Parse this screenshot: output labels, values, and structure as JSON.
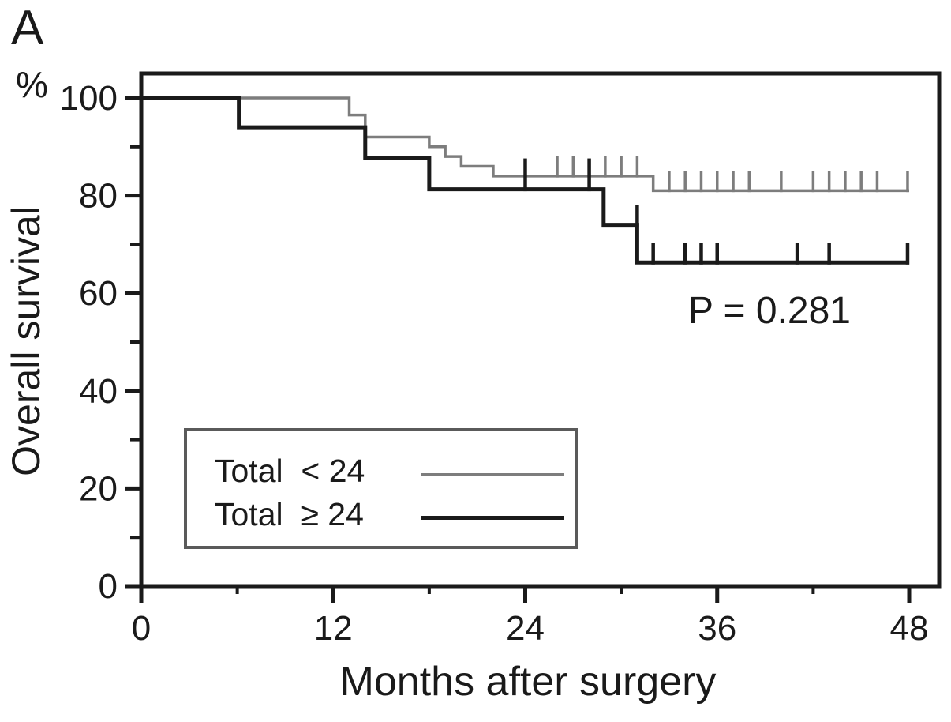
{
  "figure": {
    "panel_label": "A",
    "y_unit": "%",
    "p_value_text": "P = 0.281"
  },
  "chart_data": {
    "type": "line",
    "variant": "kaplan-meier-step-curve",
    "panel_label": "A",
    "xlabel": "Months after surgery",
    "ylabel": "Overall survival",
    "y_unit": "%",
    "xlim": [
      0,
      48
    ],
    "ylim": [
      0,
      100
    ],
    "x_major_ticks": [
      0,
      12,
      24,
      36,
      48
    ],
    "x_minor_ticks": [
      6,
      18,
      30,
      42
    ],
    "y_major_ticks": [
      100,
      80,
      60,
      40,
      20,
      0
    ],
    "y_minor_ticks": [
      90,
      70,
      50,
      30,
      10
    ],
    "grid": false,
    "legend_position": "lower-left",
    "annotation": "P = 0.281",
    "colors": {
      "axis": "#1a1a1a",
      "text": "#1a1a1a",
      "legend_border": "#5a5a5a"
    },
    "series": [
      {
        "name": "Total < 24",
        "legend_label": "Total  < 24",
        "color": "#7d7d7d",
        "line_width": 3.5,
        "points": [
          [
            0,
            100
          ],
          [
            13,
            100
          ],
          [
            13,
            96.5
          ],
          [
            14,
            96.5
          ],
          [
            14,
            92
          ],
          [
            18,
            92
          ],
          [
            18,
            90
          ],
          [
            19,
            90
          ],
          [
            19,
            88
          ],
          [
            20,
            88
          ],
          [
            20,
            86
          ],
          [
            22,
            86
          ],
          [
            22,
            84
          ],
          [
            32,
            84
          ],
          [
            32,
            81
          ],
          [
            48,
            81
          ]
        ],
        "censor_marks": [
          [
            26,
            84
          ],
          [
            27,
            84
          ],
          [
            29,
            84
          ],
          [
            30,
            84
          ],
          [
            31,
            84
          ],
          [
            33,
            81
          ],
          [
            34,
            81
          ],
          [
            35,
            81
          ],
          [
            36,
            81
          ],
          [
            37,
            81
          ],
          [
            38,
            81
          ],
          [
            40,
            81
          ],
          [
            42,
            81
          ],
          [
            43,
            81
          ],
          [
            44,
            81
          ],
          [
            45,
            81
          ],
          [
            46,
            81
          ],
          [
            47.9,
            81
          ]
        ]
      },
      {
        "name": "Total ≥ 24",
        "legend_label": "Total  ≥ 24",
        "color": "#1a1a1a",
        "line_width": 5,
        "points": [
          [
            0,
            100
          ],
          [
            6.1,
            100
          ],
          [
            6.1,
            94
          ],
          [
            14,
            94
          ],
          [
            14,
            87.7
          ],
          [
            18,
            87.7
          ],
          [
            18,
            81.3
          ],
          [
            28.9,
            81.3
          ],
          [
            28.9,
            74
          ],
          [
            31,
            74
          ],
          [
            31,
            66.3
          ],
          [
            48,
            66.3
          ]
        ],
        "censor_marks": [
          [
            24,
            81.3,
            39
          ],
          [
            28,
            81.3,
            39
          ],
          [
            31,
            74
          ],
          [
            32,
            66.3
          ],
          [
            34,
            66.3
          ],
          [
            35,
            66.3
          ],
          [
            36,
            66.3
          ],
          [
            41,
            66.3
          ],
          [
            43,
            66.3
          ],
          [
            47.9,
            66.3
          ]
        ]
      }
    ]
  }
}
